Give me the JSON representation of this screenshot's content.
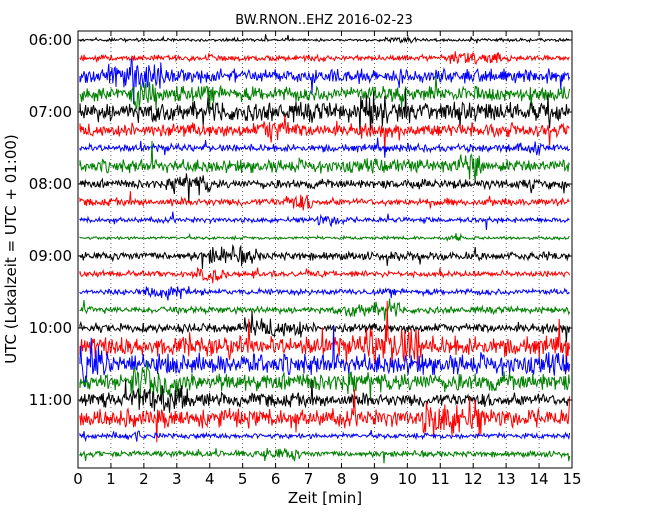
{
  "chart_data": {
    "type": "line",
    "title": "BW.RNON..EHZ 2016-02-23",
    "xlabel": "Zeit  [min]",
    "ylabel": "UTC (Lokalzeit = UTC + 01:00)",
    "xlim": [
      0,
      15
    ],
    "x_ticks": [
      "0",
      "1",
      "2",
      "3",
      "4",
      "5",
      "6",
      "7",
      "8",
      "9",
      "10",
      "11",
      "12",
      "13",
      "14",
      "15"
    ],
    "y_ticks": [
      "06:00",
      "07:00",
      "08:00",
      "09:00",
      "10:00",
      "11:00"
    ],
    "trace_colors": [
      "#000000",
      "#ff0000",
      "#0000ff",
      "#008000"
    ],
    "row_interval_min": 15,
    "rows": [
      {
        "start": "06:00",
        "amp": 0.2
      },
      {
        "start": "06:15",
        "amp": 0.4
      },
      {
        "start": "06:30",
        "amp": 0.9
      },
      {
        "start": "06:45",
        "amp": 1.0
      },
      {
        "start": "07:00",
        "amp": 1.3
      },
      {
        "start": "07:15",
        "amp": 0.9
      },
      {
        "start": "07:30",
        "amp": 0.5
      },
      {
        "start": "07:45",
        "amp": 0.9
      },
      {
        "start": "08:00",
        "amp": 0.6
      },
      {
        "start": "08:15",
        "amp": 0.5
      },
      {
        "start": "08:30",
        "amp": 0.35
      },
      {
        "start": "08:45",
        "amp": 0.2
      },
      {
        "start": "09:00",
        "amp": 0.55
      },
      {
        "start": "09:15",
        "amp": 0.4
      },
      {
        "start": "09:30",
        "amp": 0.4
      },
      {
        "start": "09:45",
        "amp": 0.45
      },
      {
        "start": "10:00",
        "amp": 0.6
      },
      {
        "start": "10:15",
        "amp": 1.3
      },
      {
        "start": "10:30",
        "amp": 1.4
      },
      {
        "start": "10:45",
        "amp": 1.2
      },
      {
        "start": "11:00",
        "amp": 0.9
      },
      {
        "start": "11:15",
        "amp": 1.2
      },
      {
        "start": "11:30",
        "amp": 0.35
      },
      {
        "start": "11:45",
        "amp": 0.4
      }
    ]
  }
}
